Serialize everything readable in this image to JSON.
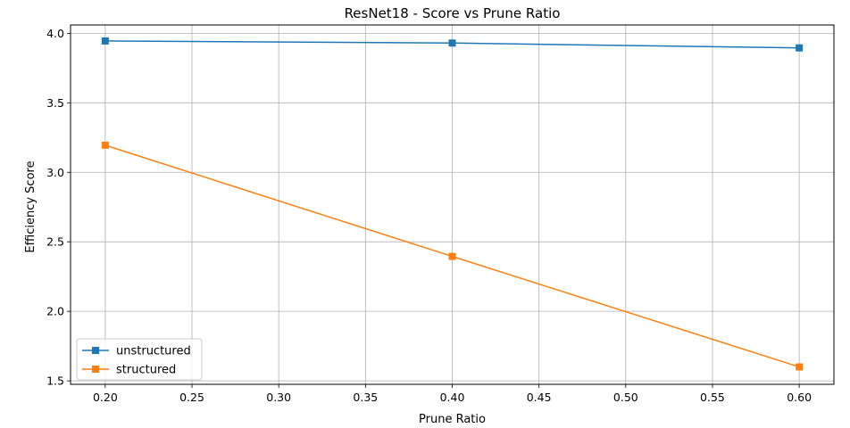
{
  "chart_data": {
    "type": "line",
    "title": "ResNet18 - Score vs Prune Ratio",
    "xlabel": "Prune Ratio",
    "ylabel": "Efficiency Score",
    "x": [
      0.2,
      0.4,
      0.6
    ],
    "xlim": [
      0.18,
      0.62
    ],
    "ylim": [
      1.475,
      4.06
    ],
    "xticks": [
      "0.20",
      "0.25",
      "0.30",
      "0.35",
      "0.40",
      "0.45",
      "0.50",
      "0.55",
      "0.60"
    ],
    "yticks": [
      "1.5",
      "2.0",
      "2.5",
      "3.0",
      "3.5",
      "4.0"
    ],
    "grid": true,
    "legend_position": "lower-left",
    "marker": "square",
    "series": [
      {
        "name": "unstructured",
        "color": "#1f77b4",
        "values": [
          3.945,
          3.93,
          3.895
        ]
      },
      {
        "name": "structured",
        "color": "#ff7f0e",
        "values": [
          3.195,
          2.395,
          1.6
        ]
      }
    ]
  }
}
